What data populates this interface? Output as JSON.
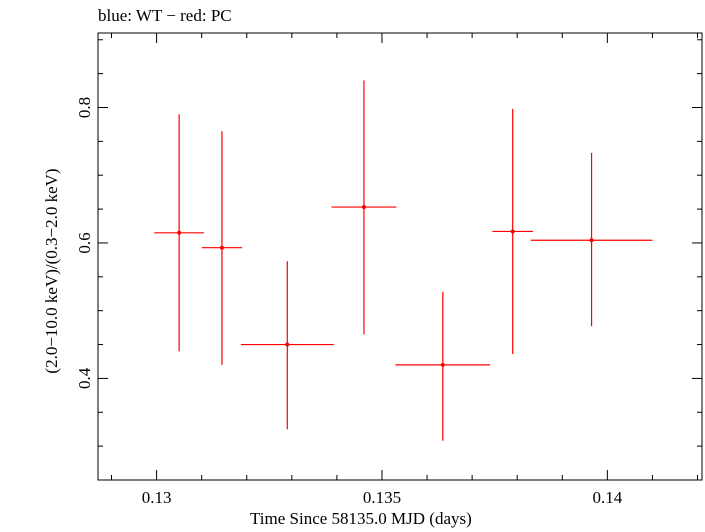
{
  "chart_data": {
    "type": "scatter",
    "title": "blue: WT − red: PC",
    "xlabel": "Time Since 58135.0 MJD (days)",
    "ylabel": "(2.0−10.0 keV)/(0.3−2.0 keV)",
    "xlim": [
      0.1287,
      0.1421
    ],
    "ylim": [
      0.25,
      0.91
    ],
    "x_ticks": [
      0.13,
      0.135,
      0.14
    ],
    "x_tick_labels": [
      "0.13",
      "0.135",
      "0.14"
    ],
    "y_ticks": [
      0.4,
      0.6,
      0.8
    ],
    "y_tick_labels": [
      "0.4",
      "0.6",
      "0.8"
    ],
    "grid": false,
    "legend": "none",
    "series": [
      {
        "color": "#ff0000",
        "points": [
          {
            "x": 0.1305,
            "xerr": 0.00055,
            "y": 0.615,
            "ylo": 0.44,
            "yhi": 0.79
          },
          {
            "x": 0.13145,
            "xerr": 0.00045,
            "y": 0.593,
            "ylo": 0.42,
            "yhi": 0.765
          },
          {
            "x": 0.1329,
            "xerr": 0.00103,
            "y": 0.45,
            "ylo": 0.325,
            "yhi": 0.573
          },
          {
            "x": 0.1346,
            "xerr": 0.00072,
            "y": 0.653,
            "ylo": 0.465,
            "yhi": 0.84
          },
          {
            "x": 0.13635,
            "xerr": 0.00105,
            "y": 0.42,
            "ylo": 0.308,
            "yhi": 0.528
          },
          {
            "x": 0.1379,
            "xerr": 0.00045,
            "y": 0.617,
            "ylo": 0.436,
            "yhi": 0.798
          },
          {
            "x": 0.13965,
            "xerr": 0.00135,
            "y": 0.604,
            "ylo": 0.477,
            "yhi": 0.733
          }
        ]
      }
    ]
  }
}
